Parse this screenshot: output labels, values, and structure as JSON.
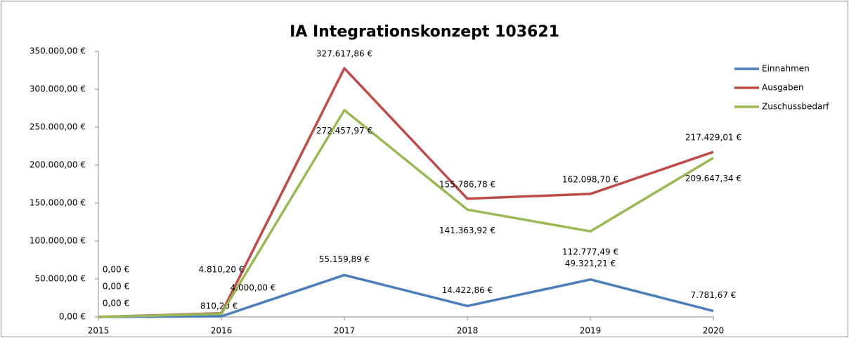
{
  "chart_data": {
    "type": "line",
    "title": "IA Integrationskonzept 103621",
    "categories": [
      "2015",
      "2016",
      "2017",
      "2018",
      "2019",
      "2020"
    ],
    "series": [
      {
        "name": "Einnahmen",
        "color": "#4a7ebb",
        "values": [
          0,
          810.2,
          55159.89,
          14422.86,
          49321.21,
          7781.67
        ],
        "value_labels": [
          "0,00 €",
          "810,20 €",
          "55.159,89 €",
          "14.422,86 €",
          "49.321,21 €",
          "7.781,67 €"
        ]
      },
      {
        "name": "Ausgaben",
        "color": "#be4b48",
        "values": [
          0,
          4810.2,
          327617.86,
          155786.78,
          162098.7,
          217429.01
        ],
        "value_labels": [
          "0,00 €",
          "4.810,20 €",
          "327.617,86 €",
          "155.786,78 €",
          "162.098,70 €",
          "217.429,01 €"
        ]
      },
      {
        "name": "Zuschussbedarf",
        "color": "#98b954",
        "values": [
          0,
          4000.0,
          272457.97,
          141363.92,
          112777.49,
          209647.34
        ],
        "value_labels": [
          "0,00 €",
          "4.000,00 €",
          "272.457,97 €",
          "141.363,92 €",
          "112.777,49 €",
          "209.647,34 €"
        ]
      }
    ],
    "ylim": [
      0,
      350000
    ],
    "yticks": [
      {
        "value": 0,
        "label": "0,00 €"
      },
      {
        "value": 50000,
        "label": "50.000,00 €"
      },
      {
        "value": 100000,
        "label": "100.000,00 €"
      },
      {
        "value": 150000,
        "label": "150.000,00 €"
      },
      {
        "value": 200000,
        "label": "200.000,00 €"
      },
      {
        "value": 250000,
        "label": "250.000,00 €"
      },
      {
        "value": 300000,
        "label": "300.000,00 €"
      },
      {
        "value": 350000,
        "label": "350.000,00 €"
      }
    ],
    "legend": "right"
  }
}
